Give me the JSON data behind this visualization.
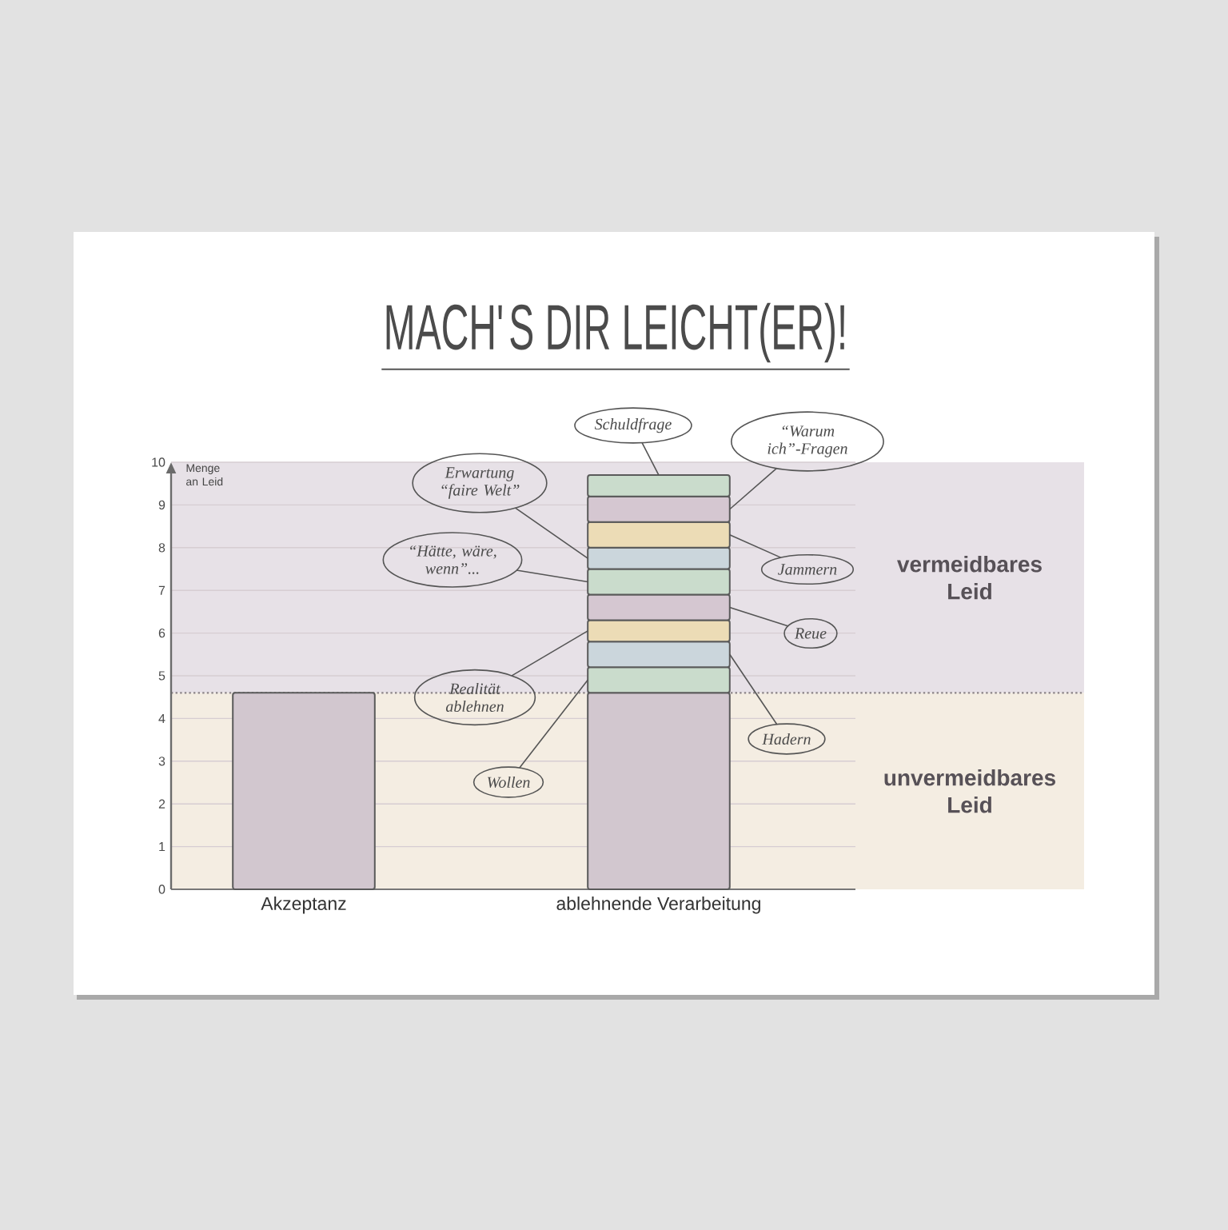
{
  "chart_data": {
    "type": "bar",
    "title": "MACH'S DIR LEICHT(ER)!",
    "ylabel": "Menge an Leid",
    "categories": [
      "Akzeptanz",
      "ablehnende Verarbeitung"
    ],
    "stacked": true,
    "series": [
      {
        "color": "#d2c7cf",
        "values": [
          4.6,
          4.6
        ]
      },
      {
        "name": "Wollen",
        "color": "#cadccc",
        "values": [
          null,
          0.6
        ]
      },
      {
        "name": "Hadern",
        "color": "#cbd6dc",
        "values": [
          null,
          0.6
        ]
      },
      {
        "name": "Realität ablehnen",
        "color": "#ecdcb6",
        "values": [
          null,
          0.5
        ]
      },
      {
        "name": "Reue",
        "color": "#d5c7d1",
        "values": [
          null,
          0.6
        ]
      },
      {
        "name": "“Hätte, wäre, wenn”...",
        "color": "#cadccc",
        "values": [
          null,
          0.6
        ]
      },
      {
        "name": "Erwartung “faire Welt”",
        "color": "#cbd6dc",
        "values": [
          null,
          0.5
        ]
      },
      {
        "name": "Jammern",
        "color": "#ecdcb6",
        "values": [
          null,
          0.6
        ]
      },
      {
        "name": "“Warum ich”-Fragen",
        "color": "#d5c7d1",
        "values": [
          null,
          0.6
        ]
      },
      {
        "name": "Schuldfrage",
        "color": "#cadccc",
        "values": [
          null,
          0.5
        ]
      }
    ],
    "ylim": [
      0,
      10
    ],
    "yticks": [
      0,
      1,
      2,
      3,
      4,
      5,
      6,
      7,
      8,
      9,
      10
    ],
    "grid": "y",
    "bands": [
      {
        "axis": "y",
        "from": 0,
        "to": 4.6,
        "label": "unvermeidbares Leid",
        "color": "#f4ede2"
      },
      {
        "axis": "y",
        "from": 4.6,
        "to": 10,
        "label": "vermeidbares Leid",
        "color": "#e7e1e7"
      }
    ],
    "ref_lines": [
      {
        "axis": "y",
        "value": 4.6,
        "color": "#8c8488",
        "line_style": "dotted"
      }
    ]
  }
}
